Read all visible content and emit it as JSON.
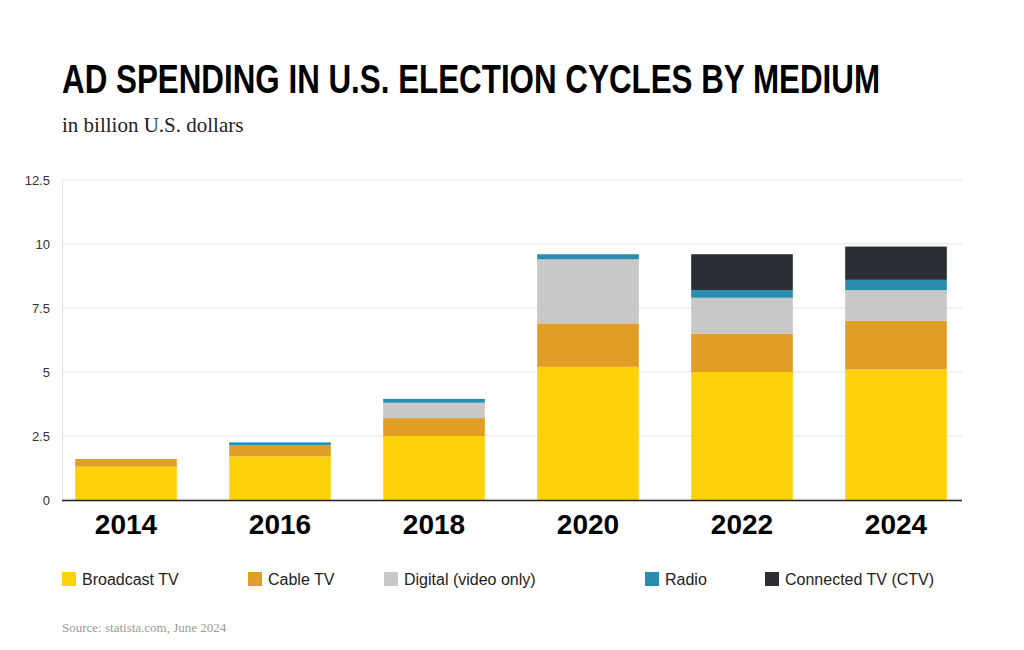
{
  "chart_data": {
    "type": "bar",
    "title": "AD SPENDING IN U.S. ELECTION CYCLES BY MEDIUM",
    "subtitle": "in billion U.S. dollars",
    "source": "Source: statista.com, June 2024",
    "categories": [
      "2014",
      "2016",
      "2018",
      "2020",
      "2022",
      "2024"
    ],
    "series": [
      {
        "name": "Broadcast TV",
        "color": "#fdd20a",
        "values": [
          1.3,
          1.7,
          2.5,
          5.2,
          5.0,
          5.1
        ]
      },
      {
        "name": "Cable TV",
        "color": "#e19e27",
        "values": [
          0.3,
          0.45,
          0.7,
          1.7,
          1.5,
          1.9
        ]
      },
      {
        "name": "Digital (video only)",
        "color": "#c8c8c8",
        "values": [
          0,
          0,
          0.6,
          2.5,
          1.4,
          1.2
        ]
      },
      {
        "name": "Radio",
        "color": "#2a8dad",
        "values": [
          0,
          0.1,
          0.15,
          0.2,
          0.3,
          0.4
        ]
      },
      {
        "name": "Connected TV (CTV)",
        "color": "#2a2d34",
        "values": [
          0,
          0,
          0,
          0,
          1.4,
          1.3
        ]
      }
    ],
    "ylim": [
      0,
      12.5
    ],
    "yticks": [
      0,
      2.5,
      5,
      7.5,
      10,
      12.5
    ],
    "stacked": true,
    "grid": true,
    "legend": "bottom"
  }
}
